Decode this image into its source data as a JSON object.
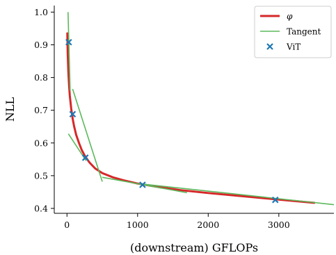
{
  "chart_data": {
    "type": "line",
    "xlabel": "(downstream) GFLOPs",
    "ylabel": "NLL",
    "xlim": [
      -180,
      3780
    ],
    "ylim": [
      0.385,
      1.02
    ],
    "x_ticks": [
      0,
      1000,
      2000,
      3000
    ],
    "y_ticks": [
      0.4,
      0.5,
      0.6,
      0.7,
      0.8,
      0.9,
      1.0
    ],
    "x_tick_labels": [
      "0",
      "1000",
      "2000",
      "3000"
    ],
    "y_tick_labels": [
      "0.4",
      "0.5",
      "0.6",
      "0.7",
      "0.8",
      "0.9",
      "1.0"
    ],
    "grid": false,
    "legend_position": "top-right",
    "series": [
      {
        "name": "φ",
        "kind": "line",
        "color": "#d62728",
        "x": [
          5,
          10,
          20,
          30,
          40,
          60,
          80,
          100,
          130,
          170,
          210,
          260,
          320,
          400,
          500,
          650,
          800,
          1000,
          1300,
          1600,
          2000,
          2500,
          3000,
          3500
        ],
        "y": [
          0.935,
          0.875,
          0.815,
          0.775,
          0.745,
          0.705,
          0.675,
          0.652,
          0.625,
          0.6,
          0.578,
          0.558,
          0.54,
          0.522,
          0.508,
          0.495,
          0.486,
          0.476,
          0.465,
          0.456,
          0.447,
          0.437,
          0.427,
          0.417
        ]
      },
      {
        "name": "Tangent",
        "kind": "segments",
        "color": "#5cb85c",
        "segments": [
          {
            "x": [
              15,
              45
            ],
            "y": [
              1.0,
              0.76
            ]
          },
          {
            "x": [
              20,
              270
            ],
            "y": [
              0.628,
              0.546
            ]
          },
          {
            "x": [
              80,
              500
            ],
            "y": [
              0.765,
              0.482
            ]
          },
          {
            "x": [
              500,
              1700
            ],
            "y": [
              0.495,
              0.448
            ]
          },
          {
            "x": [
              1000,
              3800
            ],
            "y": [
              0.476,
              0.411
            ]
          }
        ]
      },
      {
        "name": "ViT",
        "kind": "scatter",
        "marker": "x",
        "color": "#1f77b4",
        "x": [
          25,
          80,
          260,
          1070,
          2950
        ],
        "y": [
          0.908,
          0.688,
          0.555,
          0.472,
          0.426
        ]
      }
    ],
    "legend": [
      {
        "label": "φ",
        "kind": "line",
        "color": "#d62728"
      },
      {
        "label": "Tangent",
        "kind": "thin-line",
        "color": "#5cb85c"
      },
      {
        "label": "ViT",
        "kind": "x-marker",
        "color": "#1f77b4"
      }
    ]
  }
}
